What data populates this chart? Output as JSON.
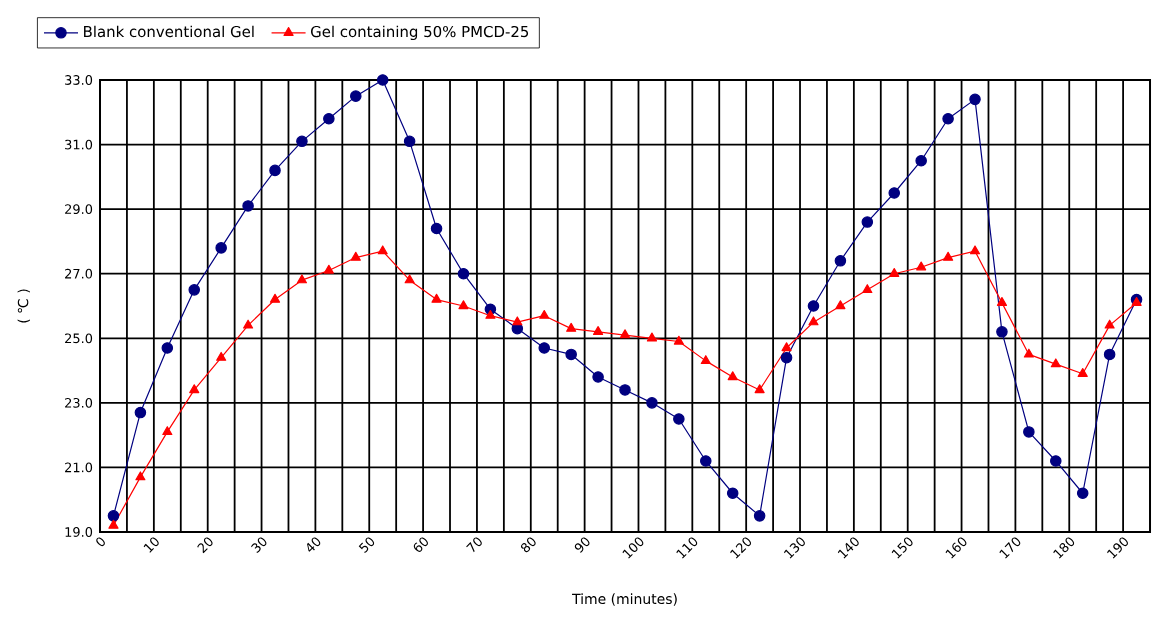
{
  "chart_data": {
    "type": "line",
    "xlabel": "Time  (minutes)",
    "ylabel": "( ℃ )",
    "x": [
      2.5,
      7.5,
      12.5,
      17.5,
      22.5,
      27.5,
      32.5,
      37.5,
      42.5,
      47.5,
      52.5,
      57.5,
      62.5,
      67.5,
      72.5,
      77.5,
      82.5,
      87.5,
      92.5,
      97.5,
      102.5,
      107.5,
      112.5,
      117.5,
      122.5,
      127.5,
      132.5,
      137.5,
      142.5,
      147.5,
      152.5,
      157.5,
      162.5,
      167.5,
      172.5,
      177.5,
      182.5,
      187.5,
      192.5
    ],
    "series": [
      {
        "name": "Blank conventional Gel",
        "color": "#000080",
        "marker": "circle",
        "values": [
          19.5,
          22.7,
          24.7,
          26.5,
          27.8,
          29.1,
          30.2,
          31.1,
          31.8,
          32.5,
          33.0,
          31.1,
          28.4,
          27.0,
          25.9,
          25.3,
          24.7,
          24.5,
          23.8,
          23.4,
          23.0,
          22.5,
          21.2,
          20.2,
          19.5,
          24.4,
          26.0,
          27.4,
          28.6,
          29.5,
          30.5,
          31.8,
          32.4,
          25.2,
          22.1,
          21.2,
          20.2,
          24.5,
          26.2
        ]
      },
      {
        "name": "Gel containing 50% PMCD-25",
        "color": "#ff0000",
        "marker": "triangle",
        "values": [
          19.2,
          20.7,
          22.1,
          23.4,
          24.4,
          25.4,
          26.2,
          26.8,
          27.1,
          27.5,
          27.7,
          26.8,
          26.2,
          26.0,
          25.7,
          25.5,
          25.7,
          25.3,
          25.2,
          25.1,
          25.0,
          24.9,
          24.3,
          23.8,
          23.4,
          24.7,
          25.5,
          26.0,
          26.5,
          27.0,
          27.2,
          27.5,
          27.7,
          26.1,
          24.5,
          24.2,
          23.9,
          25.4,
          26.1
        ]
      }
    ],
    "xlim": [
      0,
      195
    ],
    "xticks": [
      0,
      {
        "value": 5,
        "label": null
      },
      10,
      {
        "value": 15,
        "label": null
      },
      20,
      {
        "value": 25,
        "label": null
      },
      30,
      {
        "value": 35,
        "label": null
      },
      40,
      {
        "value": 45,
        "label": null
      },
      50,
      {
        "value": 55,
        "label": null
      },
      60,
      {
        "value": 65,
        "label": null
      },
      70,
      {
        "value": 75,
        "label": null
      },
      80,
      {
        "value": 85,
        "label": null
      },
      90,
      {
        "value": 95,
        "label": null
      },
      100,
      {
        "value": 105,
        "label": null
      },
      110,
      {
        "value": 115,
        "label": null
      },
      120,
      {
        "value": 125,
        "label": null
      },
      130,
      {
        "value": 135,
        "label": null
      },
      140,
      {
        "value": 145,
        "label": null
      },
      150,
      {
        "value": 155,
        "label": null
      },
      160,
      {
        "value": 165,
        "label": null
      },
      170,
      {
        "value": 175,
        "label": null
      },
      180,
      {
        "value": 185,
        "label": null
      },
      190
    ],
    "ylim": [
      19,
      33
    ],
    "yticks": [
      {
        "value": 19,
        "label": "19.0"
      },
      {
        "value": 21,
        "label": "21.0"
      },
      {
        "value": 23,
        "label": "23.0"
      },
      {
        "value": 25,
        "label": "25.0"
      },
      {
        "value": 27,
        "label": "27.0"
      },
      {
        "value": 29,
        "label": "29.0"
      },
      {
        "value": 31,
        "label": "31.0"
      },
      {
        "value": 33,
        "label": "33.0"
      }
    ],
    "grid": true,
    "legend": "top",
    "line_style": "solid"
  }
}
